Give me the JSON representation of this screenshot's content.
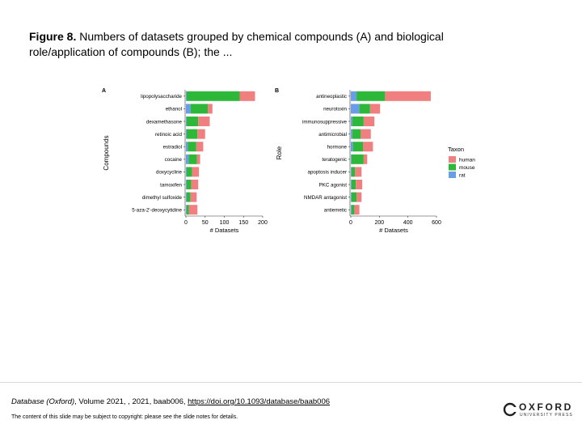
{
  "caption": {
    "label": "Figure 8.",
    "text": " Numbers of datasets grouped by chemical compounds (A) and biological role/application of compounds (B); the ..."
  },
  "citation": {
    "journal": "Database (Oxford)",
    "details": ", Volume 2021, , 2021, baab006, ",
    "doi": "https://doi.org/10.1093/database/baab006"
  },
  "copyright": "The content of this slide may be subject to copyright: please see the slide notes for details.",
  "logo": {
    "word": "OXFORD",
    "sub": "UNIVERSITY PRESS"
  },
  "colors": {
    "human": "#f08080",
    "mouse": "#2eb83a",
    "rat": "#6b9ce8"
  },
  "chart_data": [
    {
      "type": "bar",
      "orientation": "horizontal",
      "stacked": true,
      "panel_label": "A",
      "ylabel": "Compounds",
      "xlabel": "# Datasets",
      "xlim": [
        0,
        200
      ],
      "xticks": [
        0,
        50,
        100,
        150,
        200
      ],
      "categories": [
        "lipopolysaccharide",
        "ethanol",
        "dexamethasone",
        "retinoic acid",
        "estradiol",
        "cocaine",
        "doxycycline",
        "tamoxifen",
        "dimethyl sulfoxide",
        "5-aza-2'-deoxycytidine"
      ],
      "series": [
        {
          "name": "rat",
          "values": [
            2,
            12,
            2,
            2,
            5,
            7,
            2,
            2,
            2,
            2
          ]
        },
        {
          "name": "mouse",
          "values": [
            138,
            45,
            30,
            28,
            22,
            22,
            14,
            12,
            10,
            6
          ]
        },
        {
          "name": "human",
          "values": [
            40,
            12,
            30,
            20,
            18,
            8,
            18,
            18,
            16,
            22
          ]
        }
      ]
    },
    {
      "type": "bar",
      "orientation": "horizontal",
      "stacked": true,
      "panel_label": "B",
      "ylabel": "Role",
      "xlabel": "# Datasets",
      "xlim": [
        0,
        600
      ],
      "xticks": [
        0,
        200,
        400,
        600
      ],
      "categories": [
        "antineoplastic",
        "neurotoxin",
        "immunosuppressive",
        "antimicrobial",
        "hormone",
        "teratogenic",
        "apoptosis inducer",
        "PKC agonist",
        "NMDAR antagonist",
        "antiemetic"
      ],
      "series": [
        {
          "name": "rat",
          "values": [
            40,
            60,
            10,
            10,
            15,
            5,
            5,
            5,
            5,
            5
          ]
        },
        {
          "name": "mouse",
          "values": [
            200,
            75,
            80,
            60,
            70,
            85,
            25,
            30,
            35,
            20
          ]
        },
        {
          "name": "human",
          "values": [
            320,
            70,
            75,
            70,
            70,
            25,
            45,
            45,
            35,
            35
          ]
        }
      ]
    }
  ],
  "legend": {
    "title": "Taxon",
    "entries": [
      "human",
      "mouse",
      "rat"
    ]
  }
}
